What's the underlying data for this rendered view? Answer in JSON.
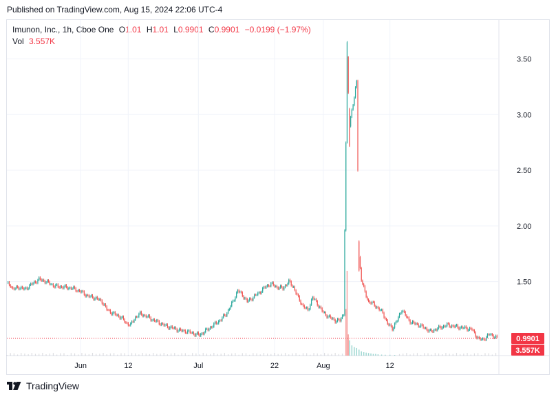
{
  "published": "Published on TradingView.com, Aug 15, 2024 22:06 UTC-4",
  "legend": {
    "title": "Imunon, Inc., 1h, Cboe One",
    "o_label": "O",
    "o_val": "1.01",
    "h_label": "H",
    "h_val": "1.01",
    "l_label": "L",
    "l_val": "0.9901",
    "c_label": "C",
    "c_val": "0.9901",
    "change": "−0.0199 (−1.97%)",
    "vol_label": "Vol",
    "vol_val": "3.557K"
  },
  "footer": {
    "brand": "TradingView",
    "logo_icon": "tradingview-logo-icon"
  },
  "colors": {
    "up": "#26a69a",
    "down": "#ef5350",
    "price_line": "#f23645",
    "grid": "#f0f3fa",
    "axis_text": "#131722"
  },
  "chart_data": {
    "type": "candlestick",
    "title": "Imunon, Inc., 1h, Cboe One",
    "ylim": [
      0.835,
      3.85
    ],
    "y_ticks": [
      "1.50",
      "2.00",
      "2.50",
      "3.00",
      "3.50"
    ],
    "x_tick_labels": [
      "Jun",
      "12",
      "Jul",
      "22",
      "Aug",
      "12"
    ],
    "last_price": "0.9901",
    "last_volume": "3.557K",
    "grid": true,
    "legend_position": "top-left",
    "price_path": [
      [
        0,
        1.48
      ],
      [
        3,
        1.47
      ],
      [
        5,
        1.43
      ],
      [
        10,
        1.45
      ],
      [
        15,
        1.43
      ],
      [
        20,
        1.47
      ],
      [
        27,
        1.52
      ],
      [
        33,
        1.5
      ],
      [
        40,
        1.46
      ],
      [
        48,
        1.45
      ],
      [
        55,
        1.44
      ],
      [
        62,
        1.41
      ],
      [
        68,
        1.37
      ],
      [
        75,
        1.35
      ],
      [
        80,
        1.32
      ],
      [
        84,
        1.25
      ],
      [
        88,
        1.22
      ],
      [
        92,
        1.2
      ],
      [
        96,
        1.18
      ],
      [
        100,
        1.13
      ],
      [
        104,
        1.11
      ],
      [
        108,
        1.18
      ],
      [
        112,
        1.21
      ],
      [
        117,
        1.19
      ],
      [
        122,
        1.16
      ],
      [
        128,
        1.13
      ],
      [
        134,
        1.1
      ],
      [
        140,
        1.08
      ],
      [
        146,
        1.06
      ],
      [
        152,
        1.05
      ],
      [
        158,
        1.03
      ],
      [
        162,
        1.02
      ],
      [
        166,
        1.05
      ],
      [
        170,
        1.08
      ],
      [
        175,
        1.12
      ],
      [
        180,
        1.16
      ],
      [
        185,
        1.22
      ],
      [
        190,
        1.32
      ],
      [
        194,
        1.42
      ],
      [
        198,
        1.38
      ],
      [
        202,
        1.32
      ],
      [
        207,
        1.36
      ],
      [
        212,
        1.4
      ],
      [
        217,
        1.45
      ],
      [
        222,
        1.48
      ],
      [
        227,
        1.45
      ],
      [
        232,
        1.44
      ],
      [
        237,
        1.5
      ],
      [
        241,
        1.45
      ],
      [
        245,
        1.35
      ],
      [
        249,
        1.28
      ],
      [
        253,
        1.24
      ],
      [
        257,
        1.36
      ],
      [
        261,
        1.3
      ],
      [
        266,
        1.22
      ],
      [
        271,
        1.18
      ],
      [
        276,
        1.15
      ],
      [
        280,
        1.15
      ],
      [
        283,
        1.21
      ],
      [
        286,
        3.5
      ],
      [
        288,
        2.9
      ],
      [
        290,
        3.05
      ],
      [
        292,
        3.15
      ],
      [
        294,
        3.3
      ],
      [
        296,
        1.72
      ],
      [
        298,
        1.52
      ],
      [
        301,
        1.4
      ],
      [
        304,
        1.32
      ],
      [
        308,
        1.3
      ],
      [
        312,
        1.26
      ],
      [
        316,
        1.22
      ],
      [
        320,
        1.12
      ],
      [
        324,
        1.08
      ],
      [
        328,
        1.15
      ],
      [
        332,
        1.25
      ],
      [
        336,
        1.18
      ],
      [
        340,
        1.13
      ],
      [
        344,
        1.12
      ],
      [
        348,
        1.1
      ],
      [
        352,
        1.08
      ],
      [
        356,
        1.05
      ],
      [
        360,
        1.07
      ],
      [
        365,
        1.09
      ],
      [
        370,
        1.11
      ],
      [
        375,
        1.1
      ],
      [
        380,
        1.09
      ],
      [
        386,
        1.08
      ],
      [
        391,
        1.07
      ],
      [
        394,
        1.02
      ],
      [
        397,
        0.98
      ],
      [
        400,
        0.98
      ],
      [
        403,
        1.0
      ],
      [
        406,
        1.03
      ],
      [
        409,
        1.01
      ],
      [
        412,
        0.99
      ]
    ],
    "volume_bars": [
      [
        285,
        0.55
      ],
      [
        286,
        1.0
      ],
      [
        287,
        0.25
      ],
      [
        288,
        0.18
      ],
      [
        290,
        0.12
      ],
      [
        292,
        0.1
      ],
      [
        294,
        0.09
      ],
      [
        296,
        0.07
      ],
      [
        298,
        0.05
      ],
      [
        300,
        0.04
      ],
      [
        302,
        0.035
      ],
      [
        304,
        0.03
      ],
      [
        306,
        0.025
      ],
      [
        308,
        0.02
      ],
      [
        310,
        0.02
      ],
      [
        312,
        0.015
      ],
      [
        315,
        0.012
      ],
      [
        318,
        0.01
      ],
      [
        322,
        0.01
      ],
      [
        326,
        0.008
      ]
    ]
  }
}
